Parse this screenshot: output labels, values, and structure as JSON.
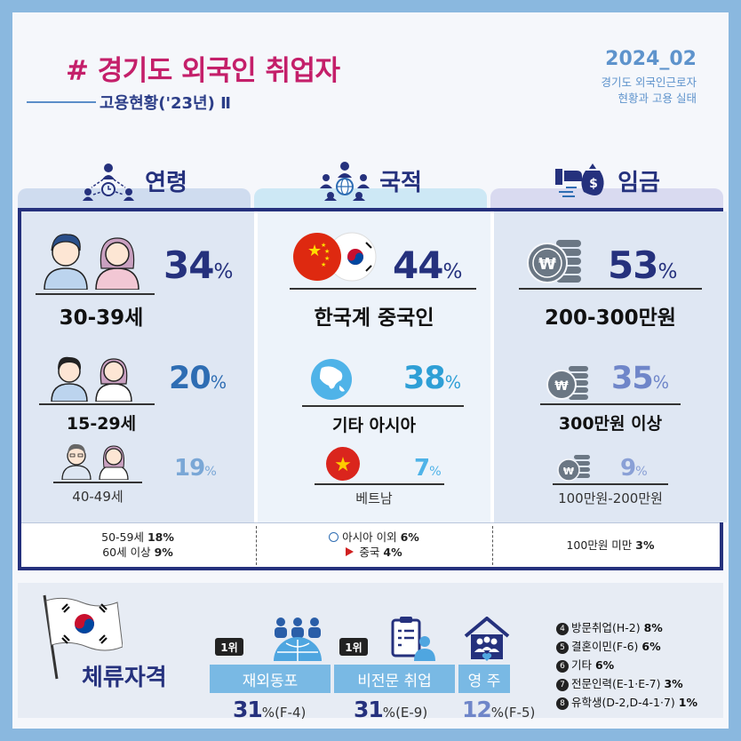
{
  "header": {
    "title": "# 경기도 외국인 취업자",
    "subtitle": "고용현황('23년) Ⅱ",
    "year": "2024_02",
    "right_sub_line1": "경기도 외국인근로자",
    "right_sub_line2": "현황과 고용 실태"
  },
  "columns": {
    "age": {
      "title": "연령",
      "items": [
        {
          "pct": "34",
          "label": "30-39세"
        },
        {
          "pct": "20",
          "label": "15-29세"
        },
        {
          "pct": "19",
          "label": "40-49세"
        }
      ],
      "footer_line1_text": "50-59세 ",
      "footer_line1_val": "18%",
      "footer_line2_text": "60세 이상 ",
      "footer_line2_val": "9%"
    },
    "nation": {
      "title": "국적",
      "items": [
        {
          "pct": "44",
          "label": "한국계 중국인"
        },
        {
          "pct": "38",
          "label": "기타 아시아"
        },
        {
          "pct": "7",
          "label": "베트남"
        }
      ],
      "footer_line1_text": "아시아 이외 ",
      "footer_line1_val": "6%",
      "footer_line2_text": "중국 ",
      "footer_line2_val": "4%"
    },
    "wage": {
      "title": "임금",
      "items": [
        {
          "pct": "53",
          "label": "200-300만원"
        },
        {
          "pct": "35",
          "label": "300만원 이상"
        },
        {
          "pct": "9",
          "label": "100만원-200만원"
        }
      ],
      "footer_line1_text": "100만원 미만 ",
      "footer_line1_val": "3%"
    }
  },
  "percent_sign": "%",
  "residency": {
    "title": "체류자격",
    "rank_label": "1위",
    "items": [
      {
        "label": "재외동포",
        "pct": "31",
        "code": "(F-4)"
      },
      {
        "label": "비전문 취업",
        "pct": "31",
        "code": "(E-9)"
      },
      {
        "label": "영 주",
        "pct": "12",
        "code": "(F-5)"
      }
    ],
    "others": [
      {
        "num": "4",
        "text": "방문취업(H-2) ",
        "val": "8%"
      },
      {
        "num": "5",
        "text": "결혼이민(F-6) ",
        "val": "6%"
      },
      {
        "num": "6",
        "text": "기타 ",
        "val": "6%"
      },
      {
        "num": "7",
        "text": "전문인력(E-1·E-7) ",
        "val": "3%"
      },
      {
        "num": "8",
        "text": "유학생(D-2,D-4-1·7) ",
        "val": "1%"
      }
    ]
  },
  "colors": {
    "title": "#c41f6a",
    "navy": "#25317d",
    "accent_blue": "#2e6db3",
    "light_blue": "#7aa7d6",
    "wage_blue": "#6f86c9",
    "box_blue": "#79b9e4"
  }
}
